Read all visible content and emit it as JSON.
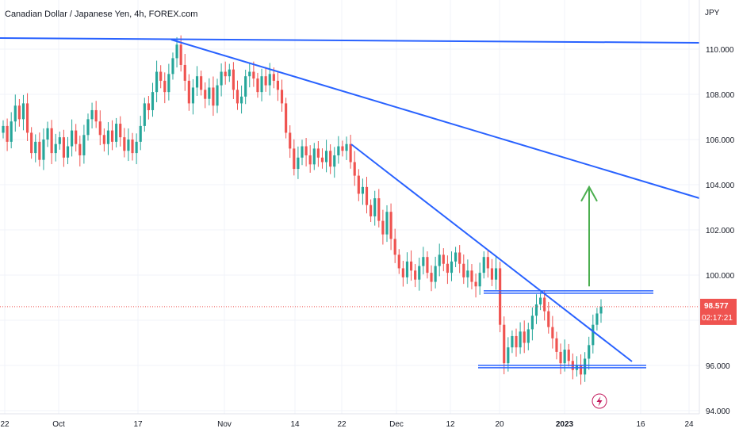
{
  "chart_data": {
    "type": "candlestick",
    "title": "Canadian Dollar / Japanese Yen, 4h, FOREX.com",
    "currency": "JPY",
    "ylim": [
      94.0,
      111.6
    ],
    "y_ticks": [
      "94.000",
      "96.000",
      "98.000",
      "100.000",
      "102.000",
      "104.000",
      "106.000",
      "108.000",
      "110.000"
    ],
    "x_ticks": [
      "22",
      "Oct",
      "17",
      "Nov",
      "14",
      "22",
      "Dec",
      "12",
      "20",
      "2023",
      "16",
      "24"
    ],
    "last_price": "98.577",
    "countdown": "02:17:21",
    "grid": true,
    "colors": {
      "up": "#26a69a",
      "down": "#ef5350",
      "trendline": "#2962ff",
      "arrow": "#4caf50",
      "price_line": "#ef5350",
      "event_icon": "#c2185b"
    },
    "series_close": [
      106.6,
      105.9,
      106.8,
      107.5,
      106.9,
      107.6,
      106.3,
      105.4,
      105.9,
      105.1,
      106.0,
      106.5,
      105.4,
      105.8,
      106.1,
      105.2,
      105.7,
      106.4,
      105.8,
      105.3,
      106.2,
      106.9,
      107.3,
      106.8,
      106.2,
      105.8,
      106.4,
      105.9,
      106.7,
      106.1,
      105.5,
      106.0,
      105.4,
      105.9,
      106.6,
      107.6,
      107.3,
      108.1,
      109.0,
      108.6,
      108.1,
      108.9,
      109.6,
      110.2,
      109.3,
      108.6,
      107.6,
      108.3,
      108.8,
      108.2,
      107.8,
      108.3,
      107.5,
      108.4,
      109.0,
      108.8,
      109.1,
      108.2,
      107.6,
      107.9,
      108.8,
      109.0,
      108.7,
      108.1,
      108.8,
      108.4,
      108.9,
      108.6,
      108.2,
      107.6,
      106.3,
      105.6,
      104.7,
      105.2,
      105.7,
      105.3,
      104.9,
      105.6,
      105.2,
      105.0,
      105.5,
      104.8,
      105.3,
      105.7,
      105.5,
      105.8,
      105.0,
      104.4,
      103.6,
      103.9,
      103.1,
      102.6,
      103.4,
      102.4,
      101.8,
      102.8,
      101.6,
      100.9,
      100.3,
      99.9,
      100.6,
      100.2,
      99.8,
      100.4,
      100.8,
      100.1,
      99.7,
      100.4,
      100.9,
      100.5,
      100.1,
      100.6,
      101.0,
      100.5,
      99.9,
      100.2,
      99.7,
      99.5,
      100.1,
      100.8,
      100.3,
      99.8,
      100.3,
      97.8,
      96.1,
      96.8,
      97.3,
      96.8,
      97.5,
      97.0,
      97.6,
      98.2,
      98.7,
      99.0,
      98.4,
      97.7,
      97.2,
      96.6,
      96.1,
      96.7,
      96.2,
      95.8,
      96.0,
      95.6,
      96.3,
      96.9,
      97.8,
      98.3,
      98.6
    ],
    "trendlines": [
      {
        "p1": [
          0,
          110.45
        ],
        "p2": [
          160,
          110.25
        ]
      },
      {
        "p1": [
          40,
          110.45
        ],
        "p2": [
          160,
          103.4
        ]
      },
      {
        "p1": [
          83,
          105.75
        ],
        "p2": [
          148,
          96.15
        ]
      }
    ],
    "levels": [
      {
        "y": 99.25,
        "x_from": 112,
        "x_to": 150
      },
      {
        "y": 95.95,
        "x_from": 110,
        "x_to": 143
      }
    ],
    "arrow": {
      "x": 135,
      "y_from": 99.5,
      "y_to": 103.9
    }
  }
}
